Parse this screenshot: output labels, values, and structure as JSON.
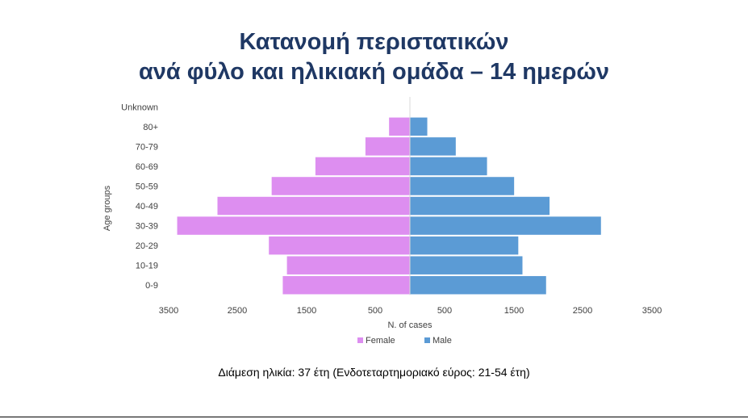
{
  "title_line1": "Κατανομή περιστατικών",
  "title_line2": "ανά φύλο και ηλικιακή ομάδα – 14 ημερών",
  "caption": "Διάμεση ηλικία: 37 έτη (Ενδοτεταρτημοριακό εύρος: 21-54 έτη)",
  "colors": {
    "title": "#1f3864",
    "female": "#dd8ef0",
    "male": "#5b9bd5"
  },
  "chart_data": {
    "type": "bar",
    "orientation": "horizontal",
    "variant": "population-pyramid",
    "categories": [
      "0-9",
      "10-19",
      "20-29",
      "30-39",
      "40-49",
      "50-59",
      "60-69",
      "70-79",
      "80+",
      "Unknown"
    ],
    "series": [
      {
        "name": "Female",
        "values": [
          1830,
          1770,
          2030,
          3350,
          2770,
          1990,
          1360,
          640,
          300,
          0
        ]
      },
      {
        "name": "Male",
        "values": [
          1960,
          1620,
          1560,
          2750,
          2010,
          1500,
          1110,
          660,
          250,
          0
        ]
      }
    ],
    "xlabel": "N. of cases",
    "ylabel": "Age groups",
    "x_tick_labels": [
      "3500",
      "2500",
      "1500",
      "500",
      "500",
      "1500",
      "2500",
      "3500"
    ],
    "xlim": [
      -3500,
      3500
    ],
    "legend_position": "bottom"
  }
}
